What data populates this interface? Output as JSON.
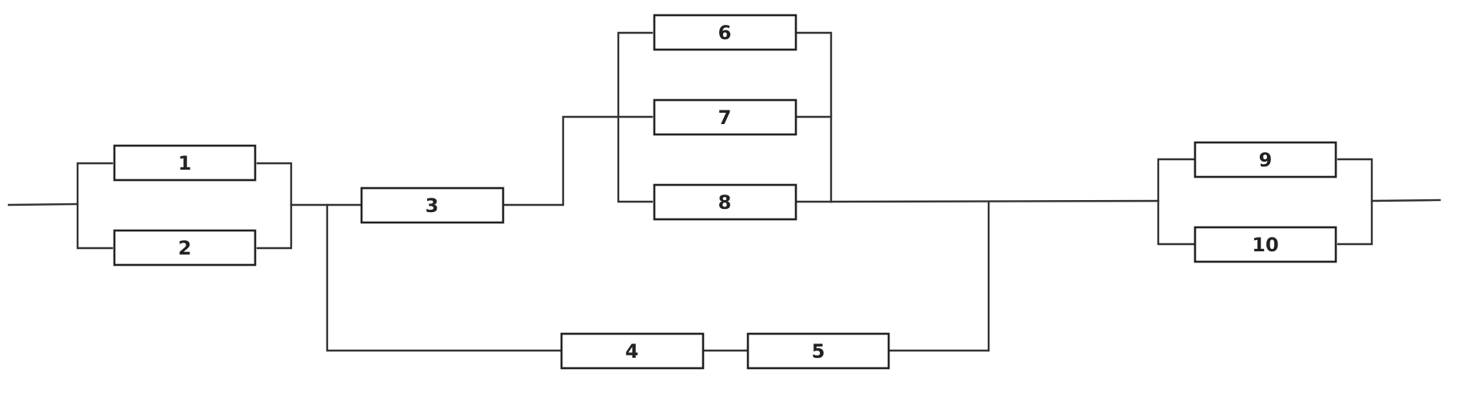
{
  "blocks": [
    {
      "id": "1",
      "label": "1"
    },
    {
      "id": "2",
      "label": "2"
    },
    {
      "id": "3",
      "label": "3"
    },
    {
      "id": "4",
      "label": "4"
    },
    {
      "id": "5",
      "label": "5"
    },
    {
      "id": "6",
      "label": "6"
    },
    {
      "id": "7",
      "label": "7"
    },
    {
      "id": "8",
      "label": "8"
    },
    {
      "id": "9",
      "label": "9"
    },
    {
      "id": "10",
      "label": "10"
    }
  ],
  "colors": {
    "line": "#333333",
    "box_border": "#222222",
    "text": "#222222",
    "background": "#ffffff"
  }
}
